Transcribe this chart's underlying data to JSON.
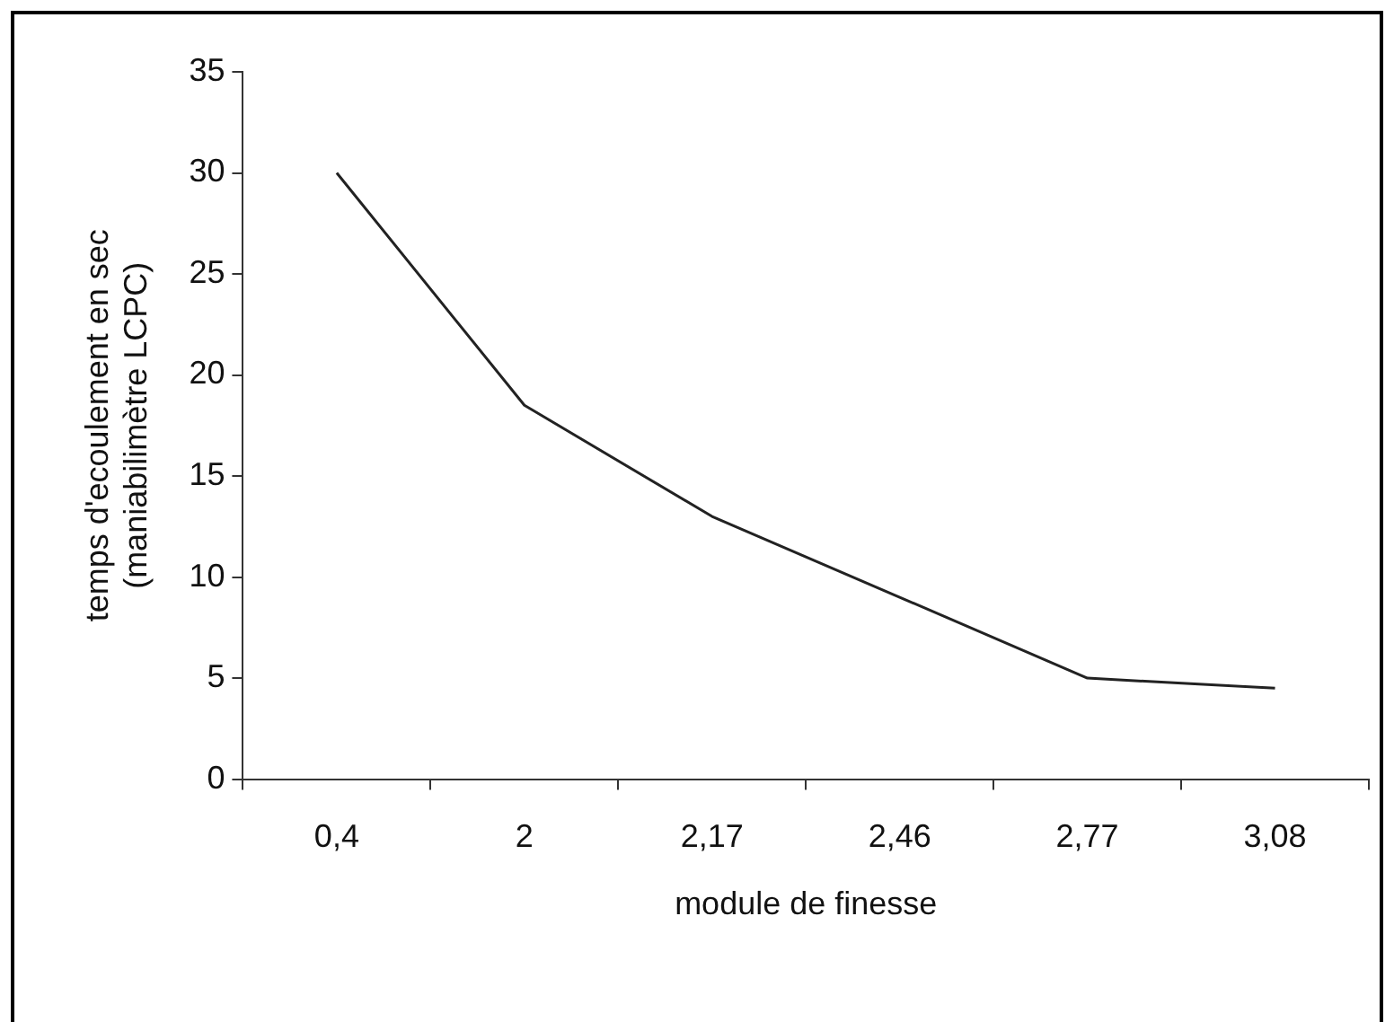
{
  "chart_data": {
    "type": "line",
    "xlabel": "module de finesse",
    "ylabel": "temps d'ecoulement en sec\n(maniabilimètre LCPC)",
    "categories": [
      "0,4",
      "2",
      "2,17",
      "2,46",
      "2,77",
      "3,08"
    ],
    "values": [
      30,
      18.5,
      13,
      9,
      5,
      4.5
    ],
    "color": "#222222",
    "ylim": [
      0,
      35
    ],
    "yticks": [
      0,
      5,
      10,
      15,
      20,
      25,
      30,
      35
    ],
    "grid": false,
    "legend": false,
    "marker": "none",
    "line_style": "solid"
  }
}
